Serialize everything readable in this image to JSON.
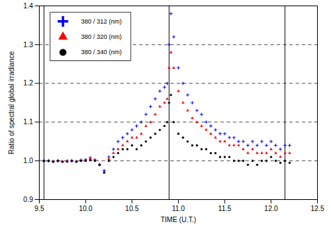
{
  "chart_data": {
    "type": "scatter",
    "x_label": "TIME (U.T.)",
    "y_label": "Ratio of spectral global irradiance",
    "x": [
      9.55,
      9.6,
      9.65,
      9.7,
      9.75,
      9.8,
      9.85,
      9.9,
      9.95,
      10.0,
      10.05,
      10.1,
      10.15,
      10.2,
      10.25,
      10.3,
      10.35,
      10.4,
      10.45,
      10.5,
      10.55,
      10.6,
      10.65,
      10.7,
      10.75,
      10.8,
      10.85,
      10.88,
      10.9,
      10.92,
      10.95,
      11.0,
      11.05,
      11.1,
      11.15,
      11.2,
      11.25,
      11.3,
      11.35,
      11.4,
      11.45,
      11.5,
      11.55,
      11.6,
      11.65,
      11.7,
      11.75,
      11.8,
      11.85,
      11.9,
      11.95,
      12.0,
      12.05,
      12.1,
      12.15,
      12.2
    ],
    "series": [
      {
        "name": "380 / 312 (nm)",
        "color": "#0000ff",
        "marker": "plus",
        "values": [
          1.0,
          1.0,
          0.998,
          1.0,
          0.998,
          1.0,
          1.0,
          0.998,
          1.002,
          1.003,
          1.008,
          1.003,
          0.99,
          0.975,
          1.01,
          1.03,
          1.05,
          1.06,
          1.07,
          1.08,
          1.09,
          1.1,
          1.12,
          1.14,
          1.16,
          1.18,
          1.19,
          1.2,
          1.3,
          1.38,
          1.32,
          1.24,
          1.2,
          1.17,
          1.15,
          1.13,
          1.12,
          1.1,
          1.09,
          1.08,
          1.07,
          1.07,
          1.06,
          1.06,
          1.05,
          1.05,
          1.04,
          1.05,
          1.04,
          1.05,
          1.04,
          1.05,
          1.04,
          1.03,
          1.04,
          1.04
        ]
      },
      {
        "name": "380 / 320 (nm)",
        "color": "#ff0000",
        "marker": "triangle",
        "values": [
          1.0,
          1.0,
          0.998,
          1.0,
          0.998,
          1.0,
          1.0,
          0.998,
          1.0,
          1.002,
          1.005,
          1.002,
          0.99,
          0.97,
          1.005,
          1.02,
          1.03,
          1.04,
          1.05,
          1.06,
          1.06,
          1.07,
          1.09,
          1.1,
          1.12,
          1.14,
          1.15,
          1.16,
          1.24,
          1.28,
          1.24,
          1.18,
          1.15,
          1.13,
          1.11,
          1.1,
          1.09,
          1.08,
          1.07,
          1.06,
          1.05,
          1.05,
          1.04,
          1.04,
          1.04,
          1.03,
          1.02,
          1.03,
          1.02,
          1.02,
          1.02,
          1.03,
          1.02,
          1.01,
          1.02,
          1.02
        ]
      },
      {
        "name": "380 / 340 (nm)",
        "color": "#000000",
        "marker": "circle",
        "values": [
          1.0,
          1.0,
          0.998,
          1.0,
          0.998,
          0.998,
          1.0,
          0.998,
          1.0,
          1.0,
          1.002,
          1.0,
          0.99,
          0.97,
          1.0,
          1.01,
          1.02,
          1.03,
          1.03,
          1.04,
          1.03,
          1.04,
          1.05,
          1.06,
          1.07,
          1.08,
          1.09,
          1.1,
          1.15,
          1.17,
          1.1,
          1.07,
          1.06,
          1.05,
          1.04,
          1.04,
          1.03,
          1.03,
          1.02,
          1.02,
          1.01,
          1.01,
          1.01,
          1.0,
          1.0,
          1.0,
          0.99,
          1.0,
          0.99,
          1.0,
          1.0,
          1.01,
          1.0,
          0.995,
          1.0,
          0.995
        ]
      }
    ],
    "vlines": [
      9.55,
      10.9,
      12.15
    ],
    "xlim": [
      9.5,
      12.5
    ],
    "xticks": [
      9.5,
      {
        "value": 10,
        "label": "10.0"
      },
      10.5,
      {
        "value": 11,
        "label": "11.0"
      },
      11.5,
      {
        "value": 12,
        "label": "12.0"
      },
      12.5
    ],
    "ylim": [
      0.9,
      1.4
    ],
    "yticks": [
      0.9,
      {
        "value": 1,
        "label": "1.0"
      },
      1.1,
      1.2,
      1.3,
      1.4
    ],
    "grid": true,
    "legend": "top-left"
  }
}
